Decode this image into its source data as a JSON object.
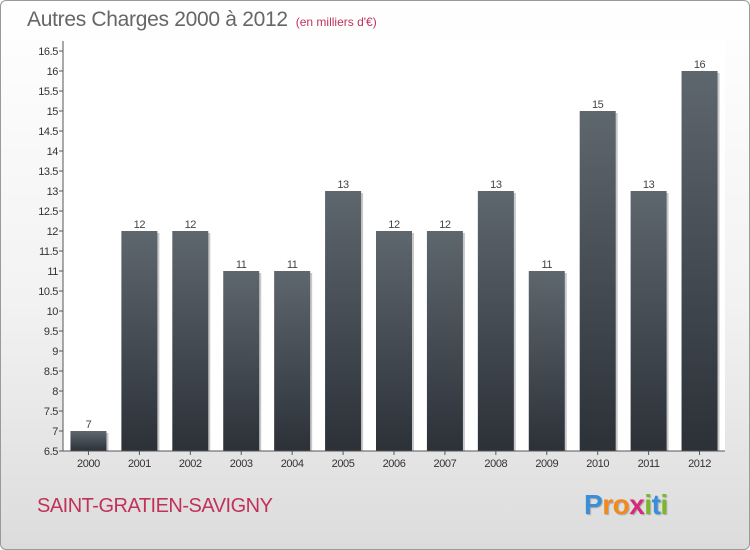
{
  "title": "Autres Charges 2000 à 2012",
  "subtitle": "(en milliers d'€)",
  "commune": "SAINT-GRATIEN-SAVIGNY",
  "logo": {
    "letters": [
      "P",
      "r",
      "o",
      "x",
      "i",
      "t",
      "i"
    ],
    "colors": [
      "#3a8fd6",
      "#f08a1c",
      "#f08a1c",
      "#d8287a",
      "#7ab82a",
      "#3a8fd6",
      "#7ab82a"
    ]
  },
  "chart_data": {
    "type": "bar",
    "categories": [
      "2000",
      "2001",
      "2002",
      "2003",
      "2004",
      "2005",
      "2006",
      "2007",
      "2008",
      "2009",
      "2010",
      "2011",
      "2012"
    ],
    "values": [
      7,
      12,
      12,
      11,
      11,
      13,
      12,
      12,
      13,
      11,
      15,
      13,
      16
    ],
    "data_labels": [
      "7",
      "12",
      "12",
      "11",
      "11",
      "13",
      "12",
      "12",
      "13",
      "11",
      "15",
      "13",
      "16"
    ],
    "ylim": [
      6.5,
      16.5
    ],
    "yticks": [
      6.5,
      7,
      7.5,
      8,
      8.5,
      9,
      9.5,
      10,
      10.5,
      11,
      11.5,
      12,
      12.5,
      13,
      13.5,
      14,
      14.5,
      15,
      15.5,
      16,
      16.5
    ],
    "ytick_labels": [
      "6.5",
      "7",
      "7.5",
      "8",
      "8.5",
      "9",
      "9.5",
      "10",
      "10.5",
      "11",
      "11.5",
      "12",
      "12.5",
      "13",
      "13.5",
      "14",
      "14.5",
      "15",
      "15.5",
      "16",
      "16.5"
    ],
    "bar_color_top": "#5e666e",
    "bar_color_bottom": "#2c3138",
    "plot_background": "#ffffff"
  }
}
